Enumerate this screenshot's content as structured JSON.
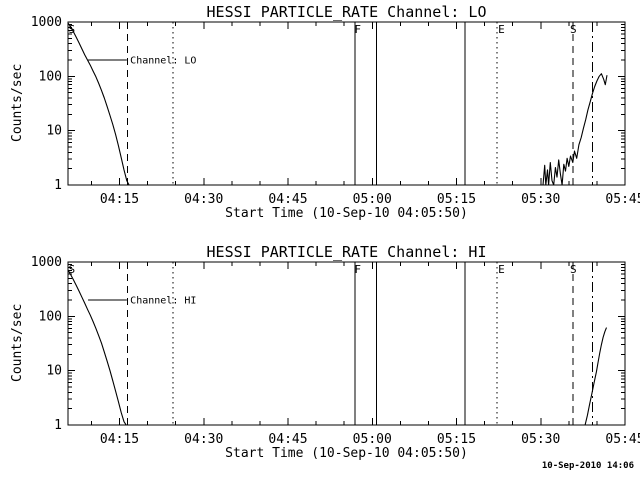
{
  "figure": {
    "bg": "#ffffff",
    "fg": "#000000",
    "timestamp": "10-Sep-2010 14:06"
  },
  "chart_data": [
    {
      "type": "line",
      "title": "HESSI PARTICLE_RATE Channel: LO",
      "xlabel": "Start Time (10-Sep-10 04:05:50)",
      "ylabel": "Counts/sec",
      "grid": false,
      "x_axis": {
        "unit": "minutes_after_04:00",
        "range": [
          5.83,
          105
        ],
        "minor_step": 5,
        "ticks": [
          {
            "m": 15,
            "label": "04:15"
          },
          {
            "m": 30,
            "label": "04:30"
          },
          {
            "m": 45,
            "label": "04:45"
          },
          {
            "m": 60,
            "label": "05:00"
          },
          {
            "m": 75,
            "label": "05:15"
          },
          {
            "m": 90,
            "label": "05:30"
          },
          {
            "m": 105,
            "label": "05:45"
          }
        ]
      },
      "y_axis": {
        "scale": "log",
        "range": [
          1,
          1000
        ],
        "ticks": [
          {
            "v": 1,
            "label": "1"
          },
          {
            "v": 10,
            "label": "10"
          },
          {
            "v": 100,
            "label": "100"
          },
          {
            "v": 1000,
            "label": "1000"
          }
        ]
      },
      "legend": {
        "label": "Channel: LO",
        "text_m": 16.9,
        "y": 200,
        "line_from_m": 9.4,
        "line_to_m": 16.3
      },
      "flags": [
        {
          "m": 6.5,
          "label": "S"
        },
        {
          "m": 57.4,
          "label": "F"
        },
        {
          "m": 83.0,
          "label": "E"
        },
        {
          "m": 95.8,
          "label": "S"
        }
      ],
      "vlines": [
        {
          "m": 16.4,
          "style": "dashed"
        },
        {
          "m": 24.5,
          "style": "dotted"
        },
        {
          "m": 56.9,
          "style": "solid"
        },
        {
          "m": 60.8,
          "style": "solid"
        },
        {
          "m": 76.5,
          "style": "solid"
        },
        {
          "m": 82.2,
          "style": "dotted"
        },
        {
          "m": 95.7,
          "style": "dashed"
        },
        {
          "m": 99.2,
          "style": "dashdot"
        }
      ],
      "series": [
        {
          "name": "decay",
          "points": [
            [
              5.85,
              950
            ],
            [
              6.3,
              820
            ],
            [
              6.8,
              660
            ],
            [
              7.3,
              520
            ],
            [
              7.8,
              410
            ],
            [
              8.3,
              320
            ],
            [
              8.8,
              250
            ],
            [
              9.3,
              200
            ],
            [
              9.8,
              160
            ],
            [
              10.3,
              125
            ],
            [
              10.8,
              98
            ],
            [
              11.3,
              74
            ],
            [
              11.8,
              55
            ],
            [
              12.3,
              40
            ],
            [
              12.8,
              28
            ],
            [
              13.3,
              19
            ],
            [
              13.8,
              13
            ],
            [
              14.3,
              8.5
            ],
            [
              14.8,
              5.3
            ],
            [
              15.3,
              3.2
            ],
            [
              15.8,
              1.9
            ],
            [
              16.3,
              1.2
            ],
            [
              16.7,
              1.0
            ]
          ]
        },
        {
          "name": "rise",
          "points": [
            [
              90.4,
              1.0
            ],
            [
              90.7,
              2.3
            ],
            [
              90.9,
              1.0
            ],
            [
              91.2,
              1.9
            ],
            [
              91.4,
              1.0
            ],
            [
              91.7,
              2.6
            ],
            [
              92.0,
              1.2
            ],
            [
              92.3,
              1.0
            ],
            [
              92.6,
              2.1
            ],
            [
              92.9,
              1.4
            ],
            [
              93.2,
              2.9
            ],
            [
              93.5,
              1.6
            ],
            [
              93.8,
              1.0
            ],
            [
              94.1,
              2.4
            ],
            [
              94.4,
              1.8
            ],
            [
              94.7,
              3.1
            ],
            [
              95.0,
              2.2
            ],
            [
              95.3,
              3.4
            ],
            [
              95.7,
              2.6
            ],
            [
              96.0,
              4.2
            ],
            [
              96.4,
              3.1
            ],
            [
              96.8,
              5.5
            ],
            [
              97.2,
              7.5
            ],
            [
              97.6,
              11
            ],
            [
              98.0,
              16
            ],
            [
              98.4,
              24
            ],
            [
              98.8,
              34
            ],
            [
              99.2,
              48
            ],
            [
              99.6,
              65
            ],
            [
              100.0,
              82
            ],
            [
              100.4,
              100
            ],
            [
              100.8,
              112
            ],
            [
              101.2,
              88
            ],
            [
              101.5,
              70
            ],
            [
              101.8,
              105
            ]
          ]
        }
      ]
    },
    {
      "type": "line",
      "title": "HESSI PARTICLE_RATE Channel: HI",
      "xlabel": "Start Time (10-Sep-10 04:05:50)",
      "ylabel": "Counts/sec",
      "grid": false,
      "x_axis": {
        "unit": "minutes_after_04:00",
        "range": [
          5.83,
          105
        ],
        "minor_step": 5,
        "ticks": [
          {
            "m": 15,
            "label": "04:15"
          },
          {
            "m": 30,
            "label": "04:30"
          },
          {
            "m": 45,
            "label": "04:45"
          },
          {
            "m": 60,
            "label": "05:00"
          },
          {
            "m": 75,
            "label": "05:15"
          },
          {
            "m": 90,
            "label": "05:30"
          },
          {
            "m": 105,
            "label": "05:45"
          }
        ]
      },
      "y_axis": {
        "scale": "log",
        "range": [
          1,
          1000
        ],
        "ticks": [
          {
            "v": 1,
            "label": "1"
          },
          {
            "v": 10,
            "label": "10"
          },
          {
            "v": 100,
            "label": "100"
          },
          {
            "v": 1000,
            "label": "1000"
          }
        ]
      },
      "legend": {
        "label": "Channel: HI",
        "text_m": 16.9,
        "y": 200,
        "line_from_m": 9.4,
        "line_to_m": 16.3
      },
      "flags": [
        {
          "m": 6.5,
          "label": "S"
        },
        {
          "m": 57.4,
          "label": "F"
        },
        {
          "m": 83.0,
          "label": "E"
        },
        {
          "m": 95.8,
          "label": "S"
        }
      ],
      "vlines": [
        {
          "m": 16.4,
          "style": "dashed"
        },
        {
          "m": 24.5,
          "style": "dotted"
        },
        {
          "m": 56.9,
          "style": "solid"
        },
        {
          "m": 60.8,
          "style": "solid"
        },
        {
          "m": 76.5,
          "style": "solid"
        },
        {
          "m": 82.2,
          "style": "dotted"
        },
        {
          "m": 95.7,
          "style": "dashed"
        },
        {
          "m": 99.2,
          "style": "dashdot"
        }
      ],
      "series": [
        {
          "name": "decay",
          "points": [
            [
              5.85,
              700
            ],
            [
              6.3,
              590
            ],
            [
              6.8,
              470
            ],
            [
              7.3,
              370
            ],
            [
              7.8,
              290
            ],
            [
              8.3,
              225
            ],
            [
              8.8,
              175
            ],
            [
              9.3,
              135
            ],
            [
              9.8,
              105
            ],
            [
              10.3,
              80
            ],
            [
              10.8,
              60
            ],
            [
              11.3,
              44
            ],
            [
              11.8,
              32
            ],
            [
              12.3,
              22
            ],
            [
              12.8,
              15
            ],
            [
              13.3,
              10
            ],
            [
              13.8,
              6.5
            ],
            [
              14.3,
              4.2
            ],
            [
              14.8,
              2.7
            ],
            [
              15.3,
              1.7
            ],
            [
              15.8,
              1.15
            ],
            [
              16.2,
              1.0
            ]
          ]
        },
        {
          "name": "rise",
          "points": [
            [
              97.9,
              1.0
            ],
            [
              98.3,
              1.5
            ],
            [
              98.7,
              2.4
            ],
            [
              99.1,
              3.8
            ],
            [
              99.5,
              6.0
            ],
            [
              99.9,
              9.5
            ],
            [
              100.2,
              14
            ],
            [
              100.5,
              21
            ],
            [
              100.8,
              30
            ],
            [
              101.1,
              41
            ],
            [
              101.4,
              52
            ],
            [
              101.7,
              62
            ]
          ]
        }
      ]
    }
  ]
}
